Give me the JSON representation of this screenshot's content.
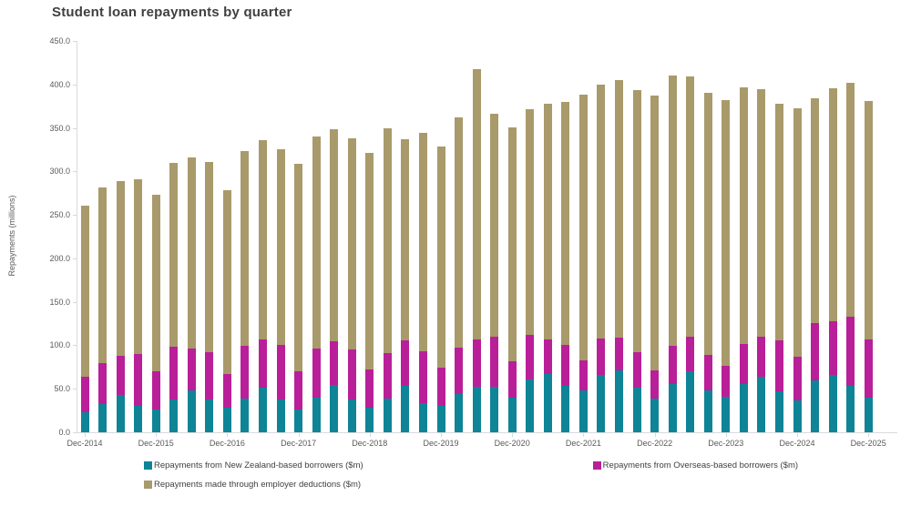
{
  "title": "Student loan repayments by quarter",
  "colors": {
    "nz_based": "#0e8496",
    "overseas_based": "#b91f98",
    "employer_deductions": "#a89a6a",
    "axis_line": "#d9d9d9",
    "axis_text": "#595959",
    "title_text": "#3f3f3f"
  },
  "chart_data": {
    "type": "bar",
    "stacked": true,
    "title": "Student loan repayments by quarter",
    "xlabel": "",
    "ylabel": "Repayments (millions)",
    "ylim": [
      0,
      450
    ],
    "ytick_step": 50,
    "ytick_labels": [
      "0.0",
      "50.0",
      "100.0",
      "150.0",
      "200.0",
      "250.0",
      "300.0",
      "350.0",
      "400.0",
      "450.0"
    ],
    "grid": false,
    "legend_position": "bottom",
    "categories": [
      "Dec-2014",
      "Mar-2015",
      "Jun-2015",
      "Sep-2015",
      "Dec-2015",
      "Mar-2016",
      "Jun-2016",
      "Sep-2016",
      "Dec-2016",
      "Mar-2017",
      "Jun-2017",
      "Sep-2017",
      "Dec-2017",
      "Mar-2018",
      "Jun-2018",
      "Sep-2018",
      "Dec-2018",
      "Mar-2019",
      "Jun-2019",
      "Sep-2019",
      "Dec-2019",
      "Mar-2020",
      "Jun-2020",
      "Sep-2020",
      "Dec-2020",
      "Mar-2021",
      "Jun-2021",
      "Sep-2021",
      "Dec-2021",
      "Mar-2022",
      "Jun-2022",
      "Sep-2022",
      "Dec-2022",
      "Mar-2023",
      "Jun-2023",
      "Sep-2023",
      "Dec-2023",
      "Mar-2024",
      "Jun-2024",
      "Sep-2024",
      "Dec-2024",
      "Mar-2025",
      "Jun-2025",
      "Sep-2025",
      "Dec-2025"
    ],
    "xtick_labels": [
      "Dec-2014",
      "Dec-2015",
      "Dec-2016",
      "Dec-2017",
      "Dec-2018",
      "Dec-2019",
      "Dec-2020",
      "Dec-2021",
      "Dec-2022",
      "Dec-2023",
      "Dec-2024",
      "Dec-2025"
    ],
    "xtick_every": 4,
    "series": [
      {
        "name": "Repayments from New Zealand-based borrowers ($m)",
        "color": "#0e8496",
        "values": [
          22.7,
          32.1,
          42.9,
          30.3,
          26.2,
          37.4,
          48.1,
          37.7,
          27.9,
          38.4,
          51.3,
          37.5,
          26.2,
          40.1,
          54.1,
          37.4,
          27.9,
          39.0,
          53.0,
          33.2,
          30.3,
          44.3,
          52.3,
          52.0,
          40.1,
          60.4,
          67.3,
          53.0,
          47.8,
          66.2,
          71.5,
          51.3,
          38.4,
          55.8,
          69.8,
          48.0,
          41.1,
          55.1,
          63.8,
          47.1,
          36.6,
          60.0,
          66.2,
          53.0,
          39.4
        ]
      },
      {
        "name": "Repayments from Overseas-based borrowers ($m)",
        "color": "#b91f98",
        "values": [
          41.1,
          47.8,
          45.0,
          59.4,
          43.6,
          61.0,
          48.5,
          54.7,
          39.1,
          61.0,
          55.1,
          62.5,
          43.6,
          55.8,
          50.5,
          57.5,
          44.6,
          52.4,
          52.3,
          59.9,
          43.7,
          53.3,
          54.8,
          58.0,
          41.8,
          51.2,
          39.8,
          47.1,
          34.9,
          41.9,
          37.7,
          41.1,
          33.1,
          43.6,
          40.1,
          40.5,
          35.6,
          46.7,
          46.1,
          58.2,
          50.6,
          65.6,
          61.8,
          79.6,
          67.0
        ]
      },
      {
        "name": "Repayments made through employer deductions ($m)",
        "color": "#a89a6a",
        "values": [
          197.2,
          202.0,
          200.6,
          200.9,
          203.0,
          211.0,
          219.0,
          218.7,
          211.0,
          224.3,
          229.5,
          226.0,
          238.9,
          244.2,
          243.5,
          242.7,
          249.1,
          258.1,
          231.3,
          251.2,
          254.6,
          264.5,
          310.9,
          255.9,
          268.7,
          259.9,
          270.4,
          279.5,
          305.2,
          291.3,
          295.8,
          301.1,
          315.7,
          311.1,
          299.6,
          301.5,
          305.2,
          294.8,
          284.9,
          272.5,
          285.0,
          258.1,
          267.9,
          269.2,
          274.5
        ]
      }
    ]
  }
}
